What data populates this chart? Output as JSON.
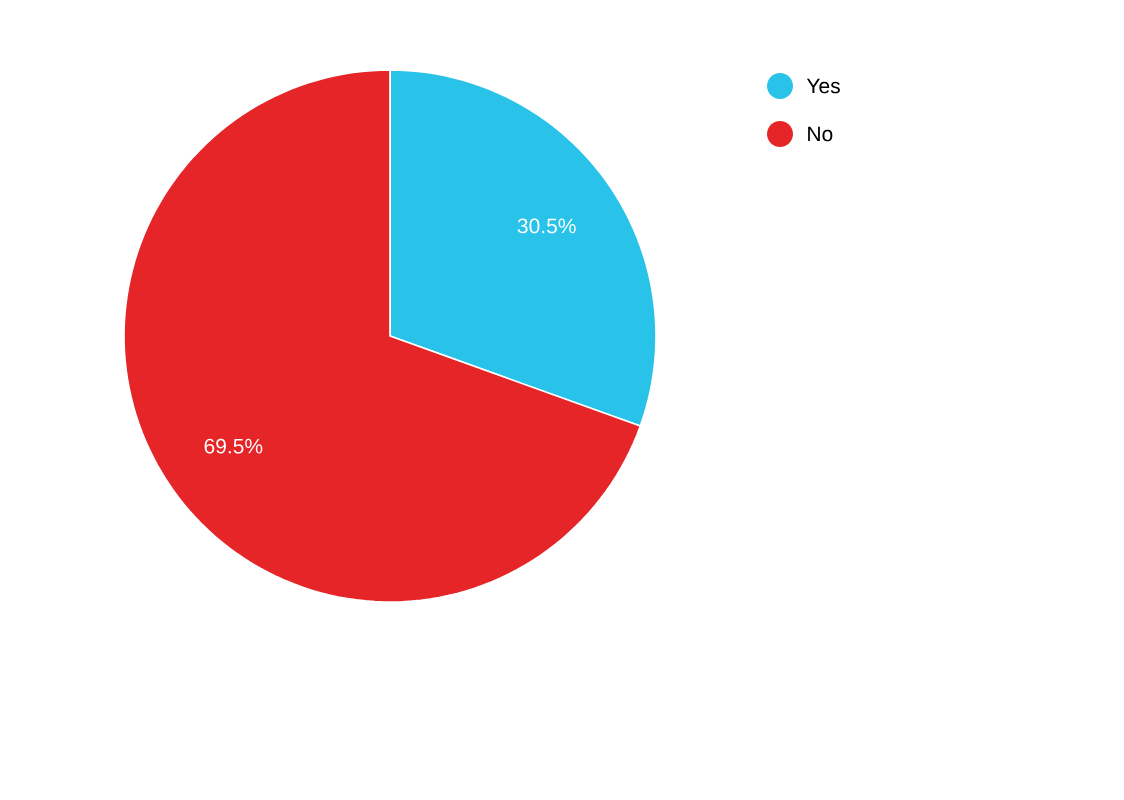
{
  "chart_data": {
    "type": "pie",
    "categories": [
      "Yes",
      "No"
    ],
    "values": [
      30.5,
      69.5
    ],
    "colors": [
      "#29c3ea",
      "#e52528"
    ],
    "value_labels": [
      "30.5%",
      "69.5%"
    ],
    "legend": "top right"
  }
}
